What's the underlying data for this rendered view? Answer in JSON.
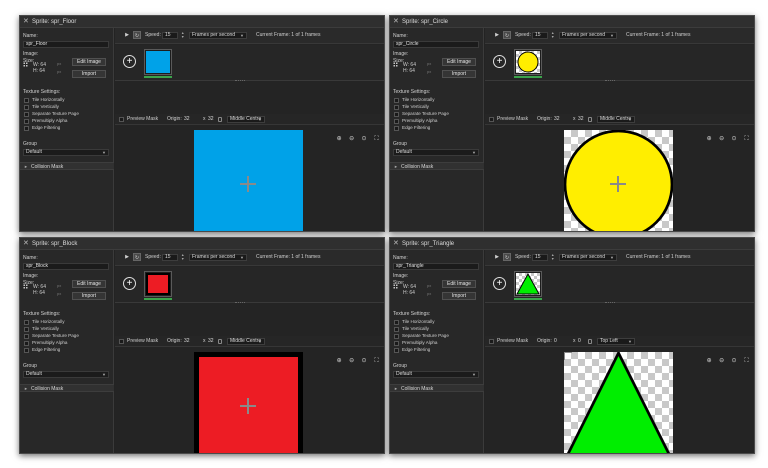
{
  "common": {
    "name_label": "Name:",
    "image_label": "Image:",
    "size_label": "Size:",
    "w_label": "W: 64",
    "h_label": "H: 64",
    "px": "px",
    "edit_image": "Edit Image",
    "import": "Import",
    "texture_settings": "Texture Settings:",
    "checkboxes": [
      "Tile Horizontally",
      "Tile Vertically",
      "Separate Texture Page",
      "Premultiply Alpha",
      "Edge Filtering"
    ],
    "group_label": "Group",
    "group_value": "Default",
    "collision_mask": "Collision Mask",
    "speed_label": "Speed:",
    "speed_value": "15",
    "fps_value": "Frames per second",
    "current_frame": "Current Frame: 1 of 1 frames",
    "preview_mask": "Preview Mask",
    "origin_label": "Origin:",
    "x_sep": "x",
    "close_glyph": "✕",
    "add_glyph": "+",
    "play_glyph": "▶",
    "loop_glyph": "↻",
    "caret_glyph": "▼",
    "zoom_in_glyph": "⊕",
    "zoom_out_glyph": "⊖",
    "zoom_reset_glyph": "⊙",
    "fit_glyph": "⛶"
  },
  "windows": [
    {
      "title": "Sprite: spr_Floor",
      "name": "spr_Floor",
      "origin_x": "32",
      "origin_y": "32",
      "origin_mode": "Middle Centre",
      "color": "#00a2e8",
      "shape": "square"
    },
    {
      "title": "Sprite: spr_Circle",
      "name": "spr_Circle",
      "origin_x": "32",
      "origin_y": "32",
      "origin_mode": "Middle Centre",
      "color": "#ffee00",
      "shape": "circle"
    },
    {
      "title": "Sprite: spr_Block",
      "name": "spr_Block",
      "origin_x": "32",
      "origin_y": "32",
      "origin_mode": "Middle Centre",
      "color": "#ed1c24",
      "shape": "block"
    },
    {
      "title": "Sprite: spr_Triangle",
      "name": "spr_Triangle",
      "origin_x": "0",
      "origin_y": "0",
      "origin_mode": "Top Left",
      "color": "#00ee00",
      "shape": "triangle"
    }
  ]
}
